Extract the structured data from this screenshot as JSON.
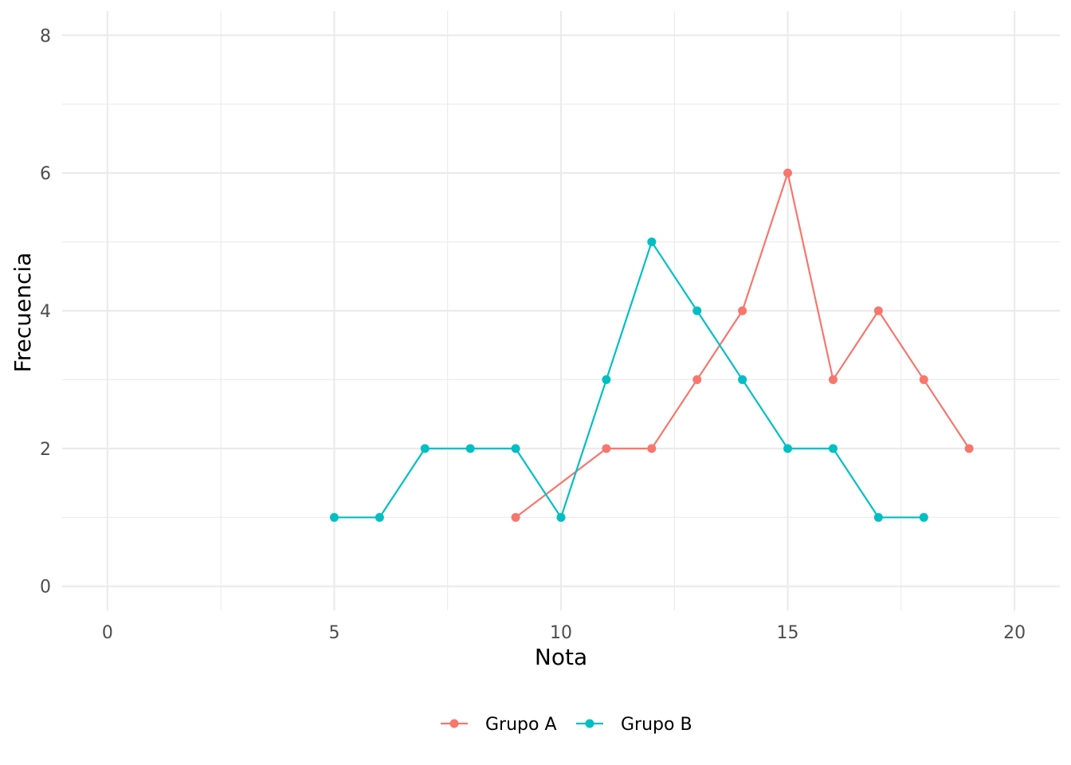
{
  "chart_data": {
    "type": "line",
    "title": "",
    "xlabel": "Nota",
    "ylabel": "Frecuencia",
    "xlim": [
      -1,
      21
    ],
    "ylim": [
      -0.35,
      8.35
    ],
    "x_ticks": [
      0,
      5,
      10,
      15,
      20
    ],
    "x_minor": [
      2.5,
      7.5,
      12.5,
      17.5
    ],
    "y_ticks": [
      0,
      2,
      4,
      6,
      8
    ],
    "y_minor": [
      1,
      3,
      5,
      7
    ],
    "grid": true,
    "legend_position": "bottom",
    "series": [
      {
        "name": "Grupo A",
        "color": "#F8766D",
        "x": [
          9,
          11,
          12,
          13,
          14,
          15,
          16,
          17,
          18,
          19
        ],
        "y": [
          1,
          2,
          2,
          3,
          4,
          6,
          3,
          4,
          3,
          2
        ]
      },
      {
        "name": "Grupo B",
        "color": "#00BFC4",
        "x": [
          5,
          6,
          7,
          8,
          9,
          10,
          11,
          12,
          13,
          14,
          15,
          16,
          17,
          18
        ],
        "y": [
          1,
          1,
          2,
          2,
          2,
          1,
          3,
          5,
          4,
          3,
          2,
          2,
          1,
          1
        ]
      }
    ]
  }
}
